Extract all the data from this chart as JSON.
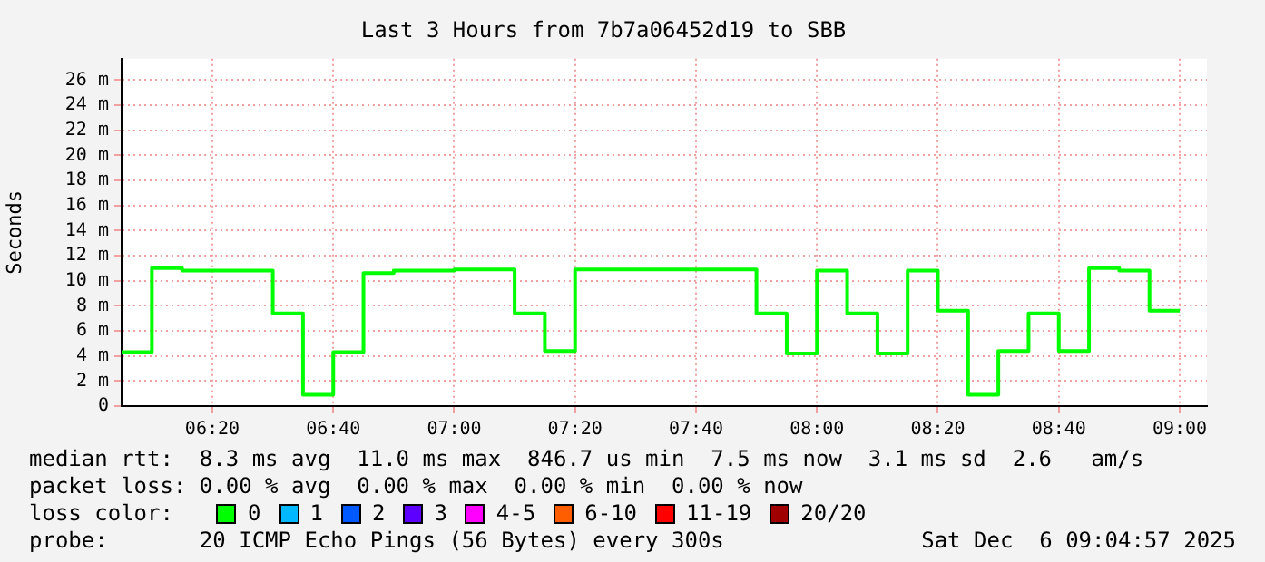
{
  "chart_data": {
    "type": "step",
    "title": "Last 3 Hours from 7b7a06452d19 to SBB",
    "ylabel": "Seconds",
    "x": [
      6.0833,
      6.1667,
      6.25,
      6.3333,
      6.4167,
      6.5,
      6.5833,
      6.6667,
      6.75,
      6.8333,
      6.9167,
      7,
      7.0833,
      7.1667,
      7.25,
      7.3333,
      7.4167,
      7.5,
      7.5833,
      7.6667,
      7.75,
      7.8333,
      7.9167,
      8,
      8.0833,
      8.1667,
      8.25,
      8.3333,
      8.4167,
      8.5,
      8.5833,
      8.6667,
      8.75,
      8.8333,
      8.9167,
      9
    ],
    "series": [
      {
        "name": "0",
        "color": "#00ff00",
        "values": [
          4.3,
          11.0,
          10.8,
          10.8,
          10.8,
          7.4,
          0.9,
          4.3,
          10.6,
          10.8,
          10.8,
          10.9,
          10.9,
          7.4,
          4.4,
          10.9,
          10.9,
          10.9,
          10.9,
          10.9,
          10.9,
          7.4,
          4.2,
          10.8,
          7.4,
          4.2,
          10.8,
          7.6,
          0.9,
          4.4,
          7.4,
          4.4,
          11.0,
          10.8,
          7.6,
          7.6
        ]
      },
      {
        "name": "1",
        "color": "#00b8ff",
        "values": [
          null,
          null,
          null,
          null,
          null,
          null,
          null,
          null,
          null,
          null,
          null,
          null,
          null,
          null,
          null,
          null,
          null,
          null,
          null,
          null,
          null,
          null,
          null,
          null,
          null,
          null,
          null,
          null,
          null,
          null,
          null,
          null,
          null,
          null,
          null,
          null
        ]
      },
      {
        "name": "2",
        "color": "#0059ff",
        "values": [
          null,
          null,
          null,
          null,
          null,
          null,
          null,
          null,
          null,
          null,
          null,
          null,
          null,
          null,
          null,
          null,
          null,
          null,
          null,
          null,
          null,
          null,
          null,
          null,
          null,
          null,
          null,
          null,
          null,
          null,
          null,
          null,
          null,
          null,
          null,
          null
        ]
      },
      {
        "name": "3",
        "color": "#5e00ff",
        "values": [
          null,
          null,
          null,
          null,
          null,
          null,
          null,
          null,
          null,
          null,
          null,
          null,
          null,
          null,
          null,
          null,
          null,
          null,
          null,
          null,
          null,
          null,
          null,
          null,
          null,
          null,
          null,
          null,
          null,
          null,
          null,
          null,
          null,
          null,
          null,
          null
        ]
      },
      {
        "name": "4-5",
        "color": "#ff00ff",
        "values": [
          null,
          null,
          null,
          null,
          null,
          null,
          null,
          null,
          null,
          null,
          null,
          null,
          null,
          null,
          null,
          null,
          null,
          null,
          null,
          null,
          null,
          null,
          null,
          null,
          null,
          null,
          null,
          null,
          null,
          null,
          null,
          null,
          null,
          null,
          null,
          null
        ]
      },
      {
        "name": "6-10",
        "color": "#ff5e00",
        "values": [
          null,
          null,
          null,
          null,
          null,
          null,
          null,
          null,
          null,
          null,
          null,
          null,
          null,
          null,
          null,
          null,
          null,
          null,
          null,
          null,
          null,
          null,
          null,
          null,
          null,
          null,
          null,
          null,
          null,
          null,
          null,
          null,
          null,
          null,
          null,
          null
        ]
      },
      {
        "name": "11-19",
        "color": "#ff0000",
        "values": [
          null,
          null,
          null,
          null,
          null,
          null,
          null,
          null,
          null,
          null,
          null,
          null,
          null,
          null,
          null,
          null,
          null,
          null,
          null,
          null,
          null,
          null,
          null,
          null,
          null,
          null,
          null,
          null,
          null,
          null,
          null,
          null,
          null,
          null,
          null,
          null
        ]
      },
      {
        "name": "20/20",
        "color": "#a10000",
        "values": [
          null,
          null,
          null,
          null,
          null,
          null,
          null,
          null,
          null,
          null,
          null,
          null,
          null,
          null,
          null,
          null,
          null,
          null,
          null,
          null,
          null,
          null,
          null,
          null,
          null,
          null,
          null,
          null,
          null,
          null,
          null,
          null,
          null,
          null,
          null,
          null
        ]
      }
    ],
    "legend_title": "loss color:",
    "legend": "bottom",
    "xlim": [
      6.0833,
      9.075
    ],
    "xticks": [
      {
        "value": 6.3333,
        "label": "06:20"
      },
      {
        "value": 6.6667,
        "label": "06:40"
      },
      {
        "value": 7,
        "label": "07:00"
      },
      {
        "value": 7.3333,
        "label": "07:20"
      },
      {
        "value": 7.6667,
        "label": "07:40"
      },
      {
        "value": 8,
        "label": "08:00"
      },
      {
        "value": 8.3333,
        "label": "08:20"
      },
      {
        "value": 8.6667,
        "label": "08:40"
      },
      {
        "value": 9,
        "label": "09:00"
      }
    ],
    "ylim": [
      0,
      27.7
    ],
    "yticks": [
      0,
      {
        "value": 2,
        "label": "2 m"
      },
      {
        "value": 4,
        "label": "4 m"
      },
      {
        "value": 6,
        "label": "6 m"
      },
      {
        "value": 8,
        "label": "8 m"
      },
      {
        "value": 10,
        "label": "10 m"
      },
      {
        "value": 12,
        "label": "12 m"
      },
      {
        "value": 14,
        "label": "14 m"
      },
      {
        "value": 16,
        "label": "16 m"
      },
      {
        "value": 18,
        "label": "18 m"
      },
      {
        "value": 20,
        "label": "20 m"
      },
      {
        "value": 22,
        "label": "22 m"
      },
      {
        "value": 24,
        "label": "24 m"
      },
      {
        "value": 26,
        "label": "26 m"
      }
    ],
    "grid": true,
    "marker": "none",
    "line_style": "solid",
    "annotations": [
      "median rtt:  8.3 ms avg  11.0 ms max  846.7 us min  7.5 ms now  3.1 ms sd  2.6   am/s",
      "packet loss: 0.00 % avg  0.00 % max  0.00 % min  0.00 % now",
      "probe:       20 ICMP Echo Pings (56 Bytes) every 300s",
      "Sat Dec  6 09:04:57 2025"
    ]
  }
}
